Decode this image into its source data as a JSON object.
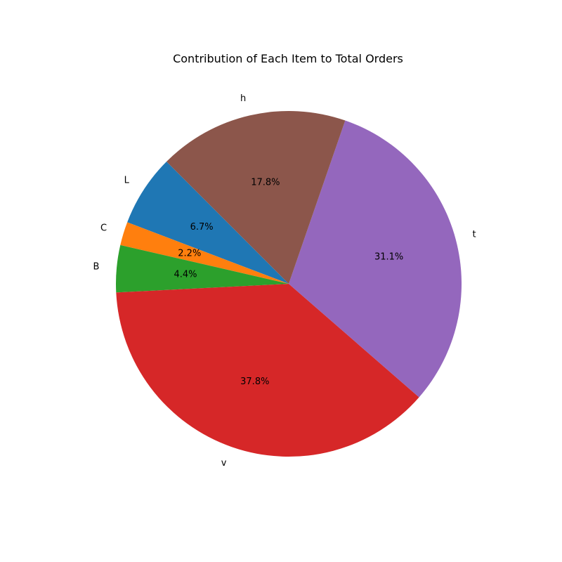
{
  "chart_data": {
    "type": "pie",
    "title": "Contribution of Each Item to Total Orders",
    "start_angle_deg": 135,
    "direction": "counterclockwise",
    "slices": [
      {
        "label": "L",
        "value": 6.7,
        "pct_label": "6.7%",
        "color": "#1f77b4"
      },
      {
        "label": "C",
        "value": 2.2,
        "pct_label": "2.2%",
        "color": "#ff7f0e"
      },
      {
        "label": "B",
        "value": 4.4,
        "pct_label": "4.4%",
        "color": "#2ca02c"
      },
      {
        "label": "v",
        "value": 37.8,
        "pct_label": "37.8%",
        "color": "#d62728"
      },
      {
        "label": "t",
        "value": 31.1,
        "pct_label": "31.1%",
        "color": "#9467bd"
      },
      {
        "label": "h",
        "value": 17.8,
        "pct_label": "17.8%",
        "color": "#8c564b"
      }
    ]
  }
}
